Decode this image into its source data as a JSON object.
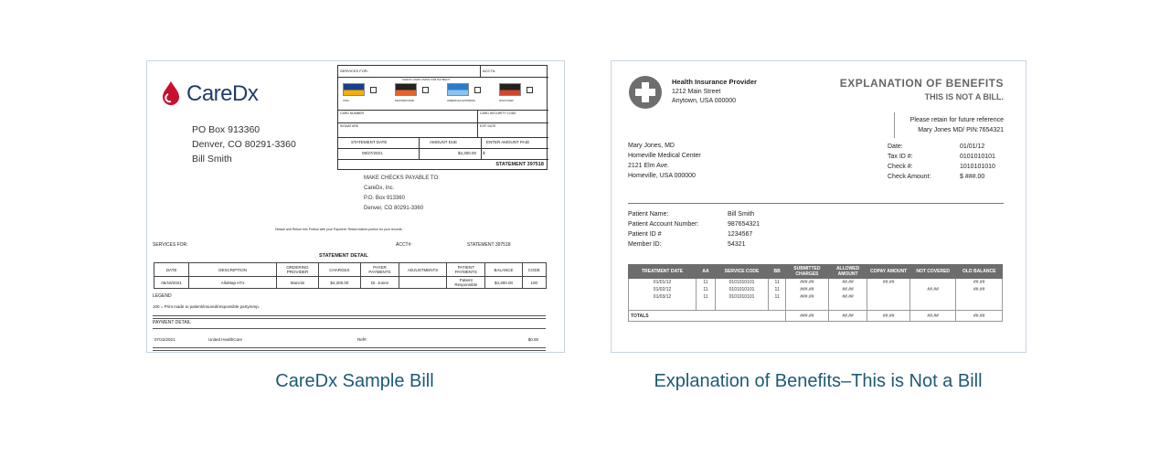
{
  "captions": [
    "CareDx Sample Bill",
    "Explanation of Benefits–This is Not a Bill"
  ],
  "bill": {
    "logo": "CareDx",
    "address": [
      "PO Box 913360",
      "Denver, CO 80291-3360",
      "Bill Smith"
    ],
    "payment_box": {
      "services_for": "SERVICES FOR:",
      "acct": "ACCT#:",
      "check_card": "CHECK CARD USING FOR PAYMENT",
      "cards": [
        "VISA",
        "MASTERCARD",
        "AMERICAN EXPRESS",
        "DISCOVER"
      ],
      "card_number": "CARD NUMBER",
      "security_code": "CARD SECURITY CODE",
      "signature": "SIGNATURE",
      "exp_date": "EXP. DATE",
      "statement_date_label": "STATEMENT DATE",
      "statement_date": "09/27/2021",
      "amount_due_label": "AMOUNT DUE",
      "amount_due": "$4,300.00",
      "enter_amount_label": "ENTER AMOUNT PAID",
      "dollar": "$",
      "statement": "STATEMENT 397518"
    },
    "payable": [
      "MAKE CHECKS PAYABLE TO:",
      "CareDx, Inc.",
      "P.O. Box 913360",
      "Denver, CO 80291-3360"
    ],
    "detach": "Detach and Return this Portion with your Payment. Retain bottom portion for your records.",
    "services_for": "SERVICES FOR:",
    "acct": "ACCT#:",
    "statement": "STATEMENT 397518",
    "detail_title": "STATEMENT DETAIL",
    "table": {
      "header": [
        "DATE",
        "DESCRIPTION",
        "ORDERING PROVIDER",
        "CHARGES",
        "PAYER PAYMENTS",
        "ADJUSTMENTS",
        "PATIENT PAYMENTS",
        "BALANCE",
        "CODE"
      ],
      "rows": [
        [
          "06/18/2021",
          "AlloMap HTx",
          "Mancini",
          "$4,300.00",
          "Dr. Jones",
          null,
          "Patient Responsible",
          "$4,300.00",
          "100"
        ]
      ]
    },
    "legend_label": "LEGEND",
    "legend": "100 = Print made to patient/insured/responsible party/emp.",
    "payment_detail_label": "PAYMENT DETAIL",
    "payment": [
      "07/22/2021",
      "United HealthCare",
      "Ref#:",
      "$0.00"
    ]
  },
  "eob": {
    "provider": [
      "Health Insurance Provider",
      "1212 Main Street",
      "Anytown, USA 000000"
    ],
    "title": "EXPLANATION OF BENEFITS",
    "subtitle": "THIS IS NOT A BILL.",
    "retain": [
      "Please retain for future reference",
      "Mary Jones MD/ PIN:7654321"
    ],
    "recipient": [
      "Mary Jones, MD",
      "Homeville Medical Center",
      "2121 Elm Ave.",
      "Homeville, USA 000000"
    ],
    "fields": [
      [
        "Date:",
        "01/01/12"
      ],
      [
        "Tax ID #:",
        "0101010101"
      ],
      [
        "Check #:",
        "1010101010"
      ],
      [
        "Check Amount:",
        "$ ###.00"
      ]
    ],
    "patient": [
      [
        "Patient Name:",
        "Bill Smith"
      ],
      [
        "Patient Account Number:",
        "987654321"
      ],
      [
        "Patient ID #",
        "1234567"
      ],
      [
        "Member ID:",
        "54321"
      ]
    ],
    "table": {
      "header": [
        "TREATMENT DATE",
        "AA",
        "SERVICE CODE",
        "BB",
        "SUBMITTED CHARGES",
        "ALLOWED AMOUNT",
        "COPAY AMOUNT",
        "NOT COVERED",
        "OLD BALANCE"
      ],
      "rows": [
        [
          "01/01/12",
          "11",
          "0101010101",
          "11",
          "###.##",
          "##.##",
          "##.##",
          null,
          "##.##"
        ],
        [
          "01/02/12",
          "11",
          "0101010101",
          "11",
          "###.##",
          "##.##",
          null,
          "##.##",
          "##.##"
        ],
        [
          "01/03/12",
          "11",
          "0101010101",
          "11",
          "###.##",
          "##.##",
          null,
          null,
          null
        ]
      ],
      "totals": [
        "TOTALS",
        "###.##",
        "##.##",
        "##.##",
        "##.##",
        "##.##"
      ]
    }
  }
}
